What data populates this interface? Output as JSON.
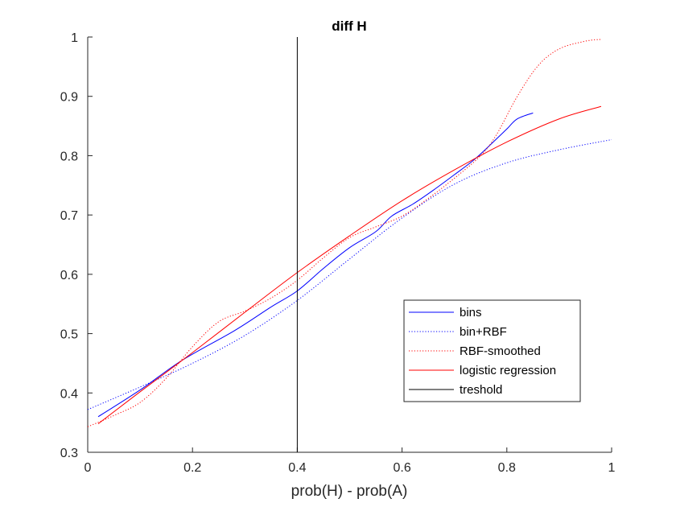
{
  "chart_data": {
    "type": "line",
    "title": "diff H",
    "xlabel": "prob(H) - prob(A)",
    "ylabel": "",
    "xlim": [
      0,
      1
    ],
    "ylim": [
      0.3,
      1
    ],
    "xticks": [
      "0",
      "0.2",
      "0.4",
      "0.6",
      "0.8",
      "1"
    ],
    "xtick_values": [
      0,
      0.2,
      0.4,
      0.6,
      0.8,
      1
    ],
    "yticks": [
      "0.3",
      "0.4",
      "0.5",
      "0.6",
      "0.7",
      "0.8",
      "0.9",
      "1"
    ],
    "ytick_values": [
      0.3,
      0.4,
      0.5,
      0.6,
      0.7,
      0.8,
      0.9,
      1
    ],
    "grid": false,
    "legend_position": "bottom-right",
    "series": [
      {
        "name": "bins",
        "color": "#0000ff",
        "style": "solid",
        "x": [
          0.02,
          0.1,
          0.18,
          0.28,
          0.35,
          0.4,
          0.45,
          0.5,
          0.55,
          0.58,
          0.62,
          0.66,
          0.7,
          0.74,
          0.78,
          0.8,
          0.82,
          0.85
        ],
        "y": [
          0.36,
          0.405,
          0.455,
          0.505,
          0.545,
          0.572,
          0.61,
          0.645,
          0.672,
          0.698,
          0.718,
          0.742,
          0.768,
          0.795,
          0.828,
          0.845,
          0.862,
          0.872
        ]
      },
      {
        "name": "bin+RBF",
        "color": "#0000ff",
        "style": "dotted",
        "x": [
          0,
          0.1,
          0.2,
          0.3,
          0.4,
          0.5,
          0.6,
          0.7,
          0.8,
          0.9,
          1
        ],
        "y": [
          0.372,
          0.41,
          0.45,
          0.497,
          0.556,
          0.626,
          0.695,
          0.752,
          0.788,
          0.81,
          0.827
        ]
      },
      {
        "name": "RBF-smoothed",
        "color": "#ff0000",
        "style": "dotted",
        "x": [
          0,
          0.05,
          0.1,
          0.15,
          0.2,
          0.25,
          0.3,
          0.35,
          0.4,
          0.45,
          0.5,
          0.55,
          0.6,
          0.65,
          0.7,
          0.75,
          0.78,
          0.82,
          0.86,
          0.9,
          0.95,
          0.98
        ],
        "y": [
          0.343,
          0.362,
          0.384,
          0.425,
          0.478,
          0.52,
          0.538,
          0.56,
          0.59,
          0.628,
          0.662,
          0.68,
          0.698,
          0.728,
          0.762,
          0.8,
          0.835,
          0.9,
          0.952,
          0.98,
          0.993,
          0.996
        ]
      },
      {
        "name": "logistic regression",
        "color": "#ff0000",
        "style": "solid",
        "x": [
          0.02,
          0.1,
          0.2,
          0.3,
          0.4,
          0.5,
          0.6,
          0.7,
          0.8,
          0.9,
          0.98
        ],
        "y": [
          0.348,
          0.402,
          0.468,
          0.536,
          0.603,
          0.665,
          0.724,
          0.776,
          0.823,
          0.862,
          0.883
        ]
      },
      {
        "name": "treshold",
        "color": "#000000",
        "style": "solid",
        "x": [
          0.4,
          0.4
        ],
        "y": [
          0.3,
          1
        ]
      }
    ]
  }
}
